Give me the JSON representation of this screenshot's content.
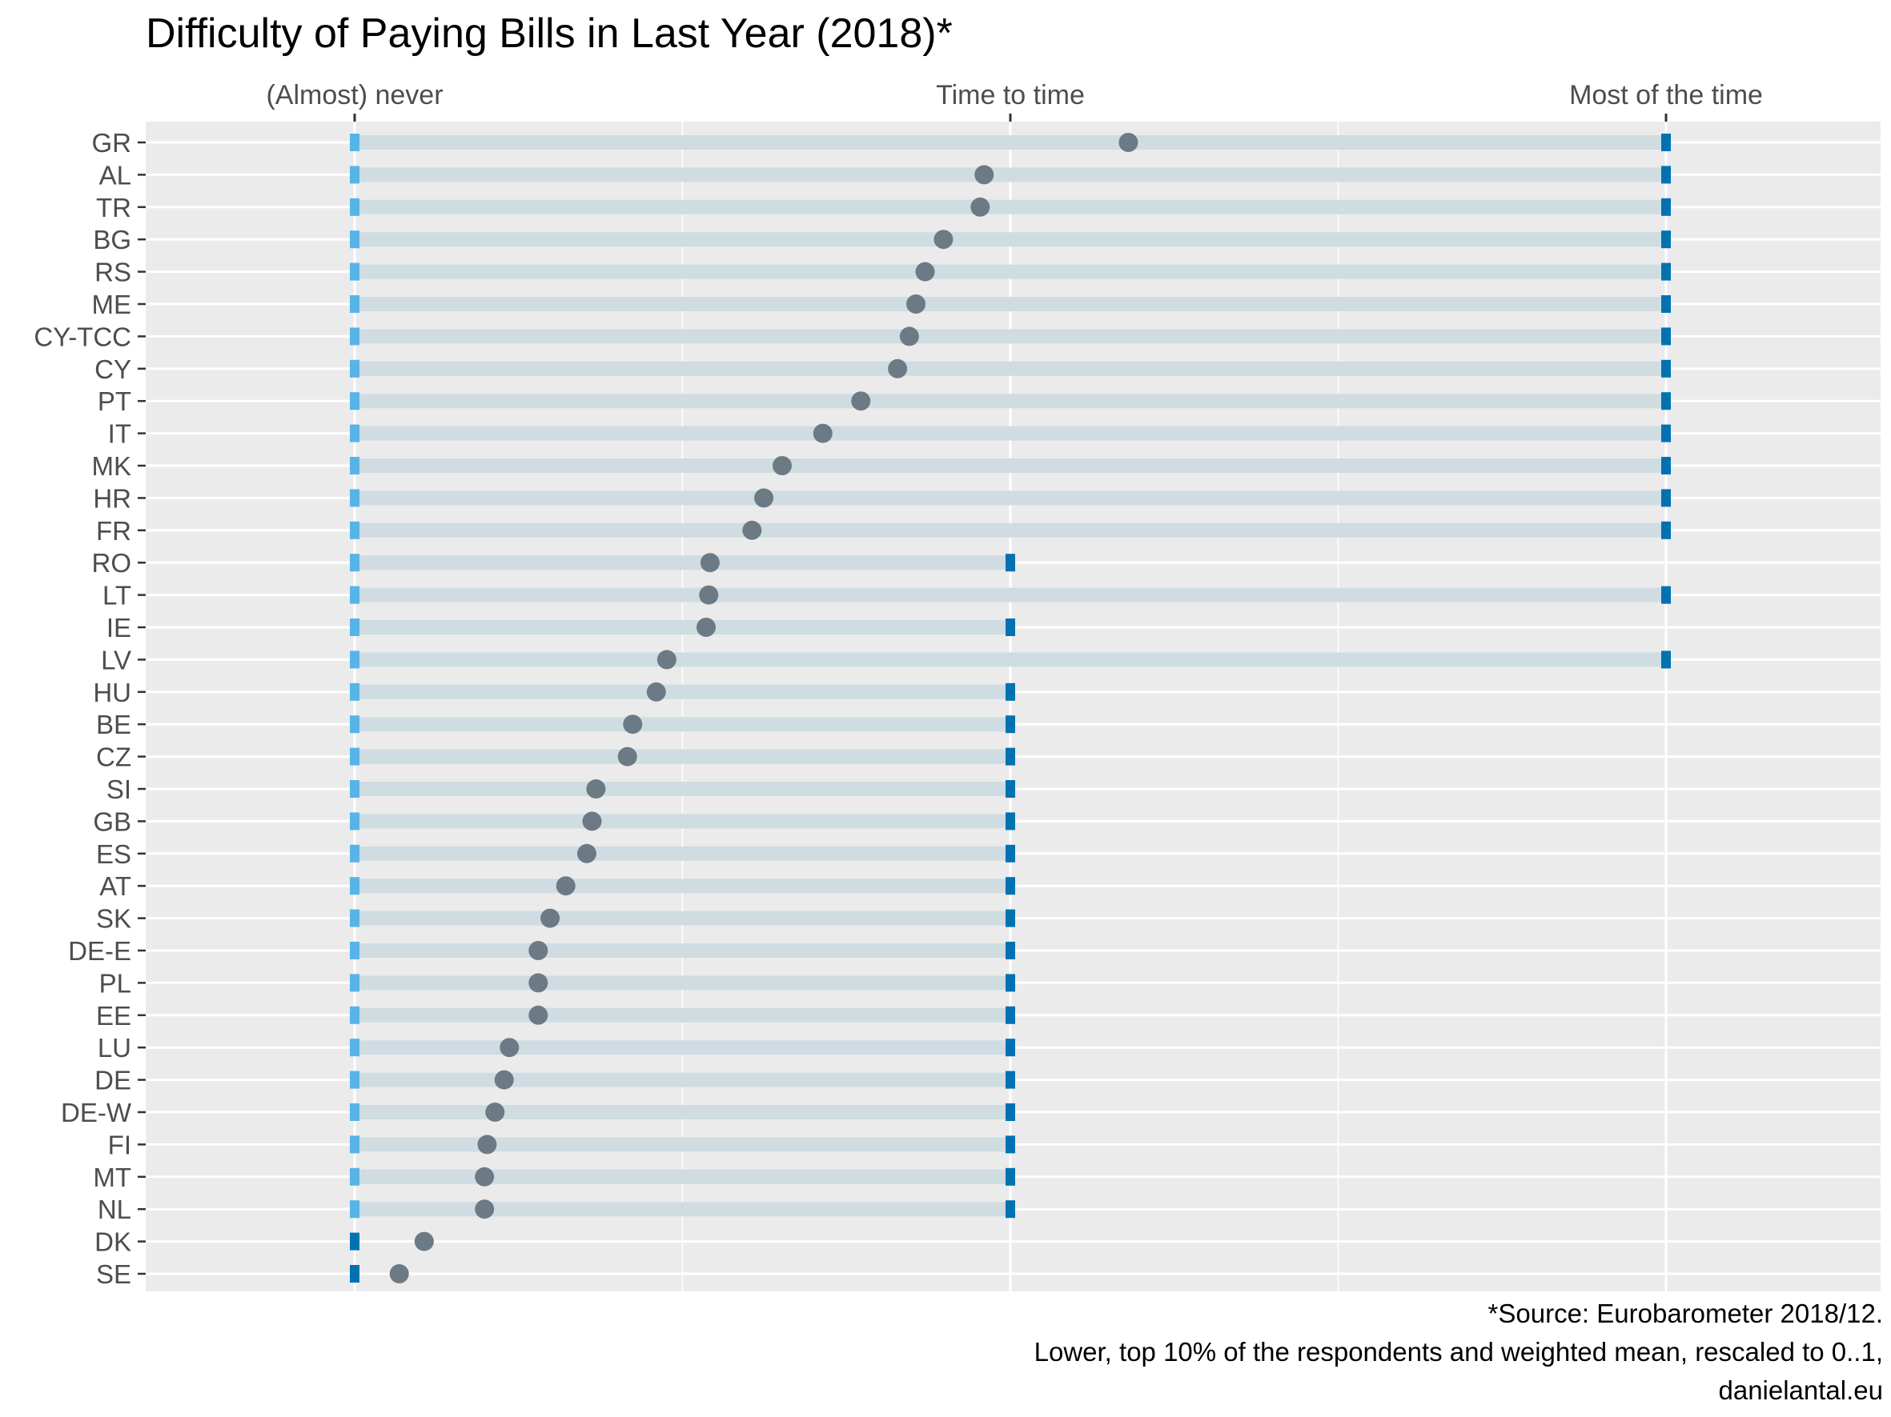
{
  "chart_data": {
    "type": "dot-range",
    "title": "Difficulty of Paying Bills in Last Year (2018)*",
    "x_tick_labels": [
      "(Almost) never",
      "Time to time",
      "Most of the time"
    ],
    "x_tick_values": [
      0,
      0.5,
      1
    ],
    "xlim": [
      -0.16,
      1.16
    ],
    "x_axis_position": "top",
    "grid": true,
    "panel_background": "#EBEBEB",
    "colors": {
      "band": "#CFDCE2",
      "lower_marker": "#56B4E9",
      "upper_marker": "#0072B2",
      "mean_point": "#6C7A86"
    },
    "rows": [
      {
        "country": "GR",
        "lower": 0,
        "upper": 1,
        "mean": 0.59
      },
      {
        "country": "AL",
        "lower": 0,
        "upper": 1,
        "mean": 0.48
      },
      {
        "country": "TR",
        "lower": 0,
        "upper": 1,
        "mean": 0.477
      },
      {
        "country": "BG",
        "lower": 0,
        "upper": 1,
        "mean": 0.449
      },
      {
        "country": "RS",
        "lower": 0,
        "upper": 1,
        "mean": 0.435
      },
      {
        "country": "ME",
        "lower": 0,
        "upper": 1,
        "mean": 0.428
      },
      {
        "country": "CY-TCC",
        "lower": 0,
        "upper": 1,
        "mean": 0.423
      },
      {
        "country": "CY",
        "lower": 0,
        "upper": 1,
        "mean": 0.414
      },
      {
        "country": "PT",
        "lower": 0,
        "upper": 1,
        "mean": 0.386
      },
      {
        "country": "IT",
        "lower": 0,
        "upper": 1,
        "mean": 0.357
      },
      {
        "country": "MK",
        "lower": 0,
        "upper": 1,
        "mean": 0.326
      },
      {
        "country": "HR",
        "lower": 0,
        "upper": 1,
        "mean": 0.312
      },
      {
        "country": "FR",
        "lower": 0,
        "upper": 1,
        "mean": 0.303
      },
      {
        "country": "RO",
        "lower": 0,
        "upper": 0.5,
        "mean": 0.271
      },
      {
        "country": "LT",
        "lower": 0,
        "upper": 1,
        "mean": 0.27
      },
      {
        "country": "IE",
        "lower": 0,
        "upper": 0.5,
        "mean": 0.268
      },
      {
        "country": "LV",
        "lower": 0,
        "upper": 1,
        "mean": 0.238
      },
      {
        "country": "HU",
        "lower": 0,
        "upper": 0.5,
        "mean": 0.23
      },
      {
        "country": "BE",
        "lower": 0,
        "upper": 0.5,
        "mean": 0.212
      },
      {
        "country": "CZ",
        "lower": 0,
        "upper": 0.5,
        "mean": 0.208
      },
      {
        "country": "SI",
        "lower": 0,
        "upper": 0.5,
        "mean": 0.184
      },
      {
        "country": "GB",
        "lower": 0,
        "upper": 0.5,
        "mean": 0.181
      },
      {
        "country": "ES",
        "lower": 0,
        "upper": 0.5,
        "mean": 0.177
      },
      {
        "country": "AT",
        "lower": 0,
        "upper": 0.5,
        "mean": 0.161
      },
      {
        "country": "SK",
        "lower": 0,
        "upper": 0.5,
        "mean": 0.149
      },
      {
        "country": "DE-E",
        "lower": 0,
        "upper": 0.5,
        "mean": 0.14
      },
      {
        "country": "PL",
        "lower": 0,
        "upper": 0.5,
        "mean": 0.14
      },
      {
        "country": "EE",
        "lower": 0,
        "upper": 0.5,
        "mean": 0.14
      },
      {
        "country": "LU",
        "lower": 0,
        "upper": 0.5,
        "mean": 0.118
      },
      {
        "country": "DE",
        "lower": 0,
        "upper": 0.5,
        "mean": 0.114
      },
      {
        "country": "DE-W",
        "lower": 0,
        "upper": 0.5,
        "mean": 0.107
      },
      {
        "country": "FI",
        "lower": 0,
        "upper": 0.5,
        "mean": 0.101
      },
      {
        "country": "MT",
        "lower": 0,
        "upper": 0.5,
        "mean": 0.099
      },
      {
        "country": "NL",
        "lower": 0,
        "upper": 0.5,
        "mean": 0.099
      },
      {
        "country": "DK",
        "lower": 0,
        "upper": 0,
        "mean": 0.053
      },
      {
        "country": "SE",
        "lower": 0,
        "upper": 0,
        "mean": 0.034
      }
    ]
  },
  "caption": {
    "line1": "*Source: Eurobarometer 2018/12.",
    "line2": "Lower, top 10% of the respondents and weighted mean, rescaled to 0..1,",
    "line3": "danielantal.eu"
  }
}
